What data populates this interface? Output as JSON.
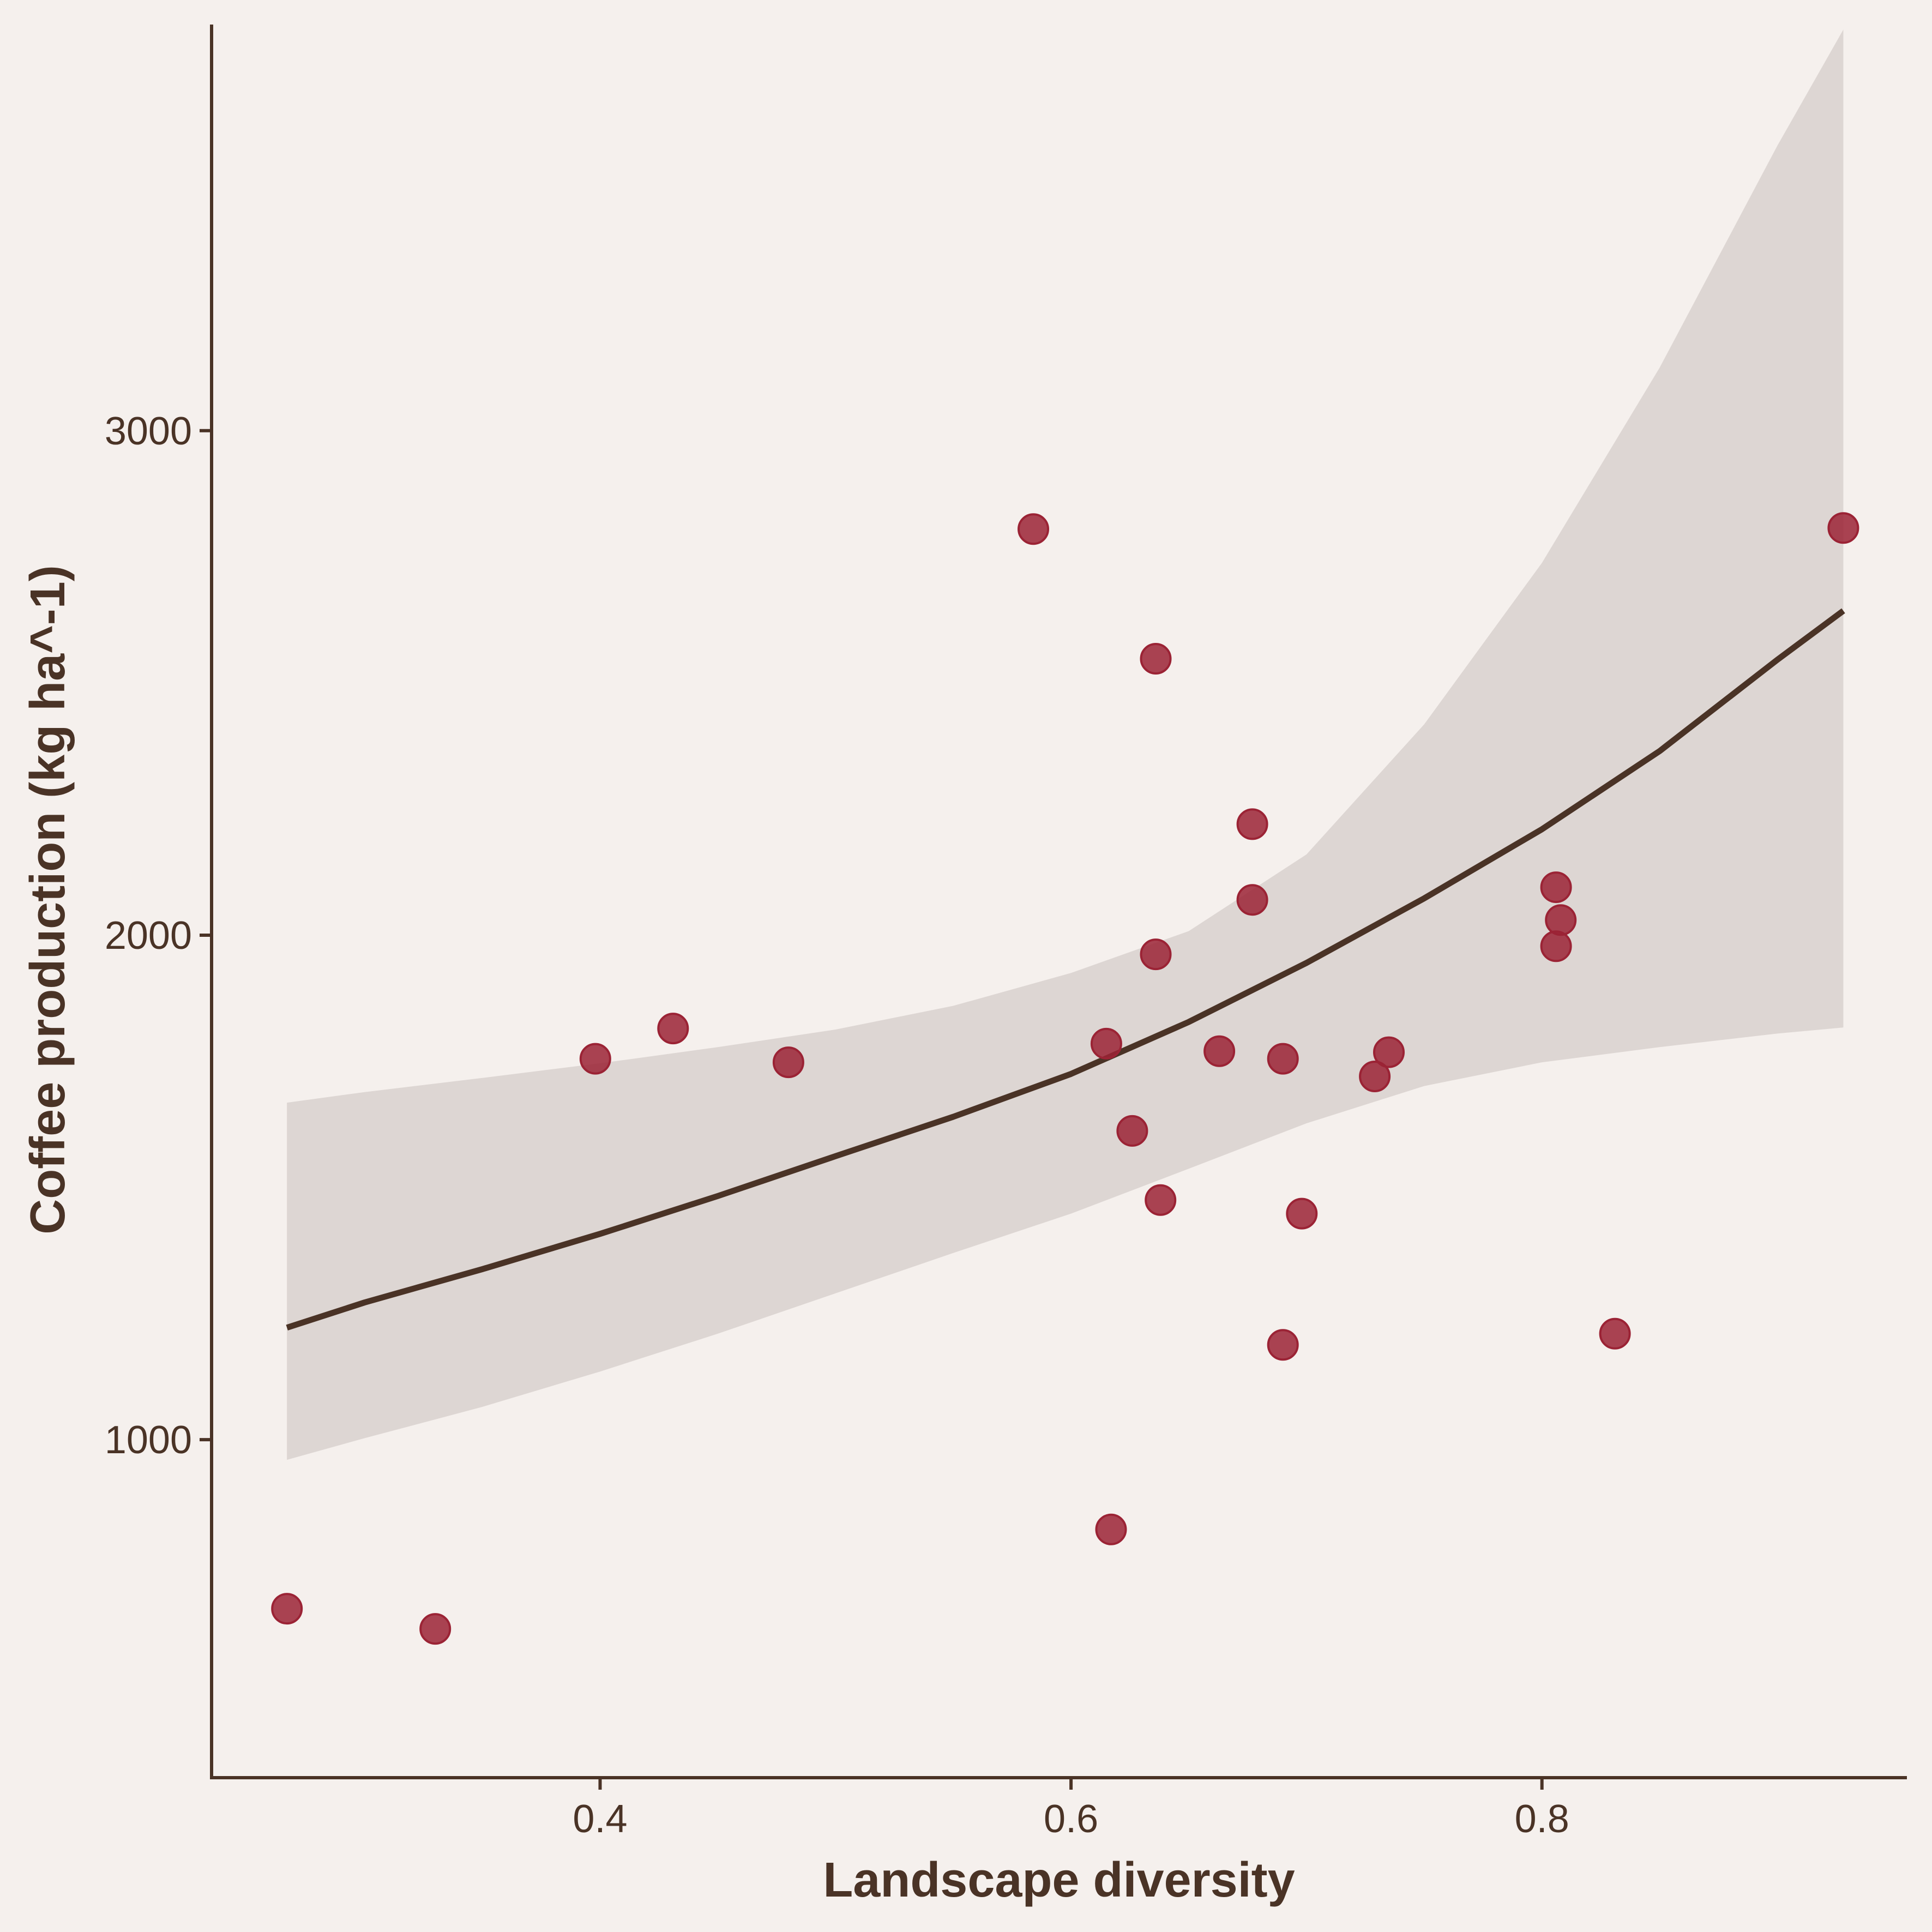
{
  "chart_data": {
    "type": "scatter",
    "xlabel": "Landscape diversity",
    "ylabel": "Coffee production (kg ha^-1)",
    "xlim": [
      0.235,
      0.955
    ],
    "ylim": [
      330,
      3805
    ],
    "xticks": [
      0.4,
      0.6,
      0.8
    ],
    "xtick_labels": [
      "0.4",
      "0.6",
      "0.8"
    ],
    "yticks": [
      1000,
      2000,
      3000
    ],
    "ytick_labels": [
      "1000",
      "2000",
      "3000"
    ],
    "grid": false,
    "colors": {
      "background": "#f5f0ed",
      "points": "#9b2335",
      "trend": "#4a3326",
      "ribbon": "#ddd6d3",
      "axis": "#4a3326"
    },
    "points": [
      {
        "x": 0.267,
        "y": 665
      },
      {
        "x": 0.33,
        "y": 625
      },
      {
        "x": 0.398,
        "y": 1755
      },
      {
        "x": 0.431,
        "y": 1815
      },
      {
        "x": 0.48,
        "y": 1748
      },
      {
        "x": 0.584,
        "y": 2805
      },
      {
        "x": 0.615,
        "y": 1785
      },
      {
        "x": 0.617,
        "y": 822
      },
      {
        "x": 0.626,
        "y": 1612
      },
      {
        "x": 0.636,
        "y": 2548
      },
      {
        "x": 0.636,
        "y": 1962
      },
      {
        "x": 0.638,
        "y": 1475
      },
      {
        "x": 0.663,
        "y": 1770
      },
      {
        "x": 0.677,
        "y": 2220
      },
      {
        "x": 0.677,
        "y": 2070
      },
      {
        "x": 0.69,
        "y": 1755
      },
      {
        "x": 0.69,
        "y": 1188
      },
      {
        "x": 0.698,
        "y": 1448
      },
      {
        "x": 0.729,
        "y": 1720
      },
      {
        "x": 0.735,
        "y": 1768
      },
      {
        "x": 0.806,
        "y": 2095
      },
      {
        "x": 0.806,
        "y": 1978
      },
      {
        "x": 0.808,
        "y": 2030
      },
      {
        "x": 0.831,
        "y": 1210
      },
      {
        "x": 0.928,
        "y": 2807
      }
    ],
    "trend": {
      "x": [
        0.267,
        0.3,
        0.35,
        0.4,
        0.45,
        0.5,
        0.55,
        0.6,
        0.65,
        0.7,
        0.75,
        0.8,
        0.85,
        0.9,
        0.928
      ],
      "y": [
        1222,
        1272,
        1338,
        1408,
        1483,
        1562,
        1640,
        1725,
        1828,
        1945,
        2073,
        2210,
        2365,
        2546,
        2643
      ],
      "upper": [
        1668,
        1689,
        1717,
        1746,
        1778,
        1813,
        1860,
        1925,
        2008,
        2160,
        2418,
        2738,
        3125,
        3565,
        3795
      ],
      "lower": [
        960,
        1003,
        1065,
        1135,
        1210,
        1290,
        1370,
        1448,
        1537,
        1627,
        1701,
        1748,
        1778,
        1805,
        1817
      ]
    }
  }
}
